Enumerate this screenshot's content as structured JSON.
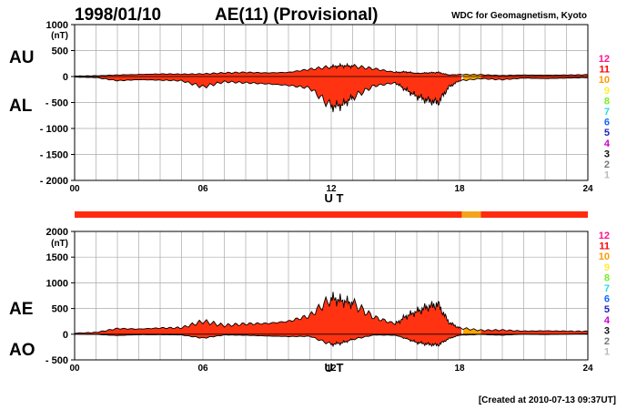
{
  "header": {
    "date": "1998/01/10",
    "title": "AE(11) (Provisional)",
    "source": "WDC for Geomagnetism, Kyoto"
  },
  "footer": {
    "created": "[Created at 2010-07-13 09:37UT]"
  },
  "colors": {
    "fill_main": "#ff3311",
    "fill_late": "#ffa500",
    "level_bar_main": "#ff2a10",
    "level_bar_segment": "#f4a41c",
    "grid": "#aaaaaa"
  },
  "level_scale": [
    {
      "label": "12",
      "color": "#ff1493"
    },
    {
      "label": "11",
      "color": "#ff0000"
    },
    {
      "label": "10",
      "color": "#ff9900"
    },
    {
      "label": "9",
      "color": "#ffee33"
    },
    {
      "label": "8",
      "color": "#77ee22"
    },
    {
      "label": "7",
      "color": "#22dddd"
    },
    {
      "label": "6",
      "color": "#1166ff"
    },
    {
      "label": "5",
      "color": "#2222bb"
    },
    {
      "label": "4",
      "color": "#cc00cc"
    },
    {
      "label": "3",
      "color": "#111111"
    },
    {
      "label": "2",
      "color": "#777777"
    },
    {
      "label": "1",
      "color": "#bbbbbb"
    }
  ],
  "level_bar": {
    "default_level": "11",
    "segments": [
      {
        "from_hour": 18.1,
        "to_hour": 19.0,
        "level": "10"
      }
    ]
  },
  "chart_data": [
    {
      "type": "area",
      "panel": "AU/AL",
      "labels": {
        "upper": "AU",
        "lower": "AL"
      },
      "unit": "(nT)",
      "xlabel": "U T",
      "xlim": [
        0,
        24
      ],
      "ylim": [
        -2000,
        1000
      ],
      "y_ticks": [
        "1000",
        "500",
        "0",
        "- 500",
        "- 1000",
        "- 1500",
        "- 2000"
      ],
      "y_tick_values": [
        1000,
        500,
        0,
        -500,
        -1000,
        -1500,
        -2000
      ],
      "x_ticks": [
        "00",
        "06",
        "12",
        "18",
        "24"
      ],
      "x_tick_values": [
        0,
        6,
        12,
        18,
        24
      ],
      "grid": true,
      "hours": [
        0,
        1,
        2,
        3,
        4,
        5,
        6,
        7,
        8,
        9,
        10,
        11,
        12,
        12.5,
        13,
        14,
        15,
        15.5,
        16,
        16.5,
        17,
        17.5,
        18,
        19,
        20,
        21,
        22,
        23,
        24
      ],
      "series": [
        {
          "name": "AU",
          "values": [
            10,
            15,
            30,
            40,
            50,
            45,
            50,
            70,
            80,
            70,
            80,
            140,
            190,
            210,
            200,
            150,
            80,
            90,
            60,
            70,
            80,
            30,
            40,
            35,
            20,
            30,
            25,
            30,
            35
          ]
        },
        {
          "name": "AL",
          "values": [
            -10,
            -20,
            -80,
            -60,
            -70,
            -80,
            -200,
            -100,
            -120,
            -140,
            -170,
            -220,
            -580,
            -550,
            -400,
            -180,
            -120,
            -260,
            -380,
            -460,
            -500,
            -200,
            -80,
            -40,
            -60,
            -30,
            -40,
            -30,
            -20
          ]
        }
      ]
    },
    {
      "type": "area",
      "panel": "AE/AO",
      "labels": {
        "upper": "AE",
        "lower": "AO"
      },
      "unit": "(nT)",
      "xlabel": "U T",
      "xlim": [
        0,
        24
      ],
      "ylim": [
        -500,
        2000
      ],
      "y_ticks": [
        "2000",
        "1500",
        "1000",
        "500",
        "0",
        "- 500"
      ],
      "y_tick_values": [
        2000,
        1500,
        1000,
        500,
        0,
        -500
      ],
      "x_ticks": [
        "00",
        "06",
        "12",
        "18",
        "24"
      ],
      "x_tick_values": [
        0,
        6,
        12,
        18,
        24
      ],
      "grid": true,
      "hours": [
        0,
        1,
        2,
        3,
        4,
        5,
        6,
        7,
        8,
        9,
        10,
        11,
        12,
        12.5,
        13,
        14,
        15,
        15.5,
        16,
        16.5,
        17,
        17.5,
        18,
        19,
        20,
        21,
        22,
        23,
        24
      ],
      "series": [
        {
          "name": "AE",
          "values": [
            20,
            35,
            110,
            100,
            120,
            125,
            250,
            170,
            200,
            210,
            250,
            360,
            700,
            650,
            600,
            330,
            200,
            350,
            440,
            530,
            580,
            230,
            120,
            75,
            80,
            60,
            65,
            60,
            55
          ]
        },
        {
          "name": "AO",
          "values": [
            0,
            -5,
            -25,
            -10,
            -10,
            -15,
            -75,
            -15,
            -20,
            -35,
            -45,
            -40,
            -200,
            -170,
            -100,
            -15,
            -20,
            -85,
            -160,
            -195,
            -210,
            -85,
            -20,
            -5,
            -20,
            0,
            -8,
            0,
            8
          ]
        }
      ]
    }
  ]
}
